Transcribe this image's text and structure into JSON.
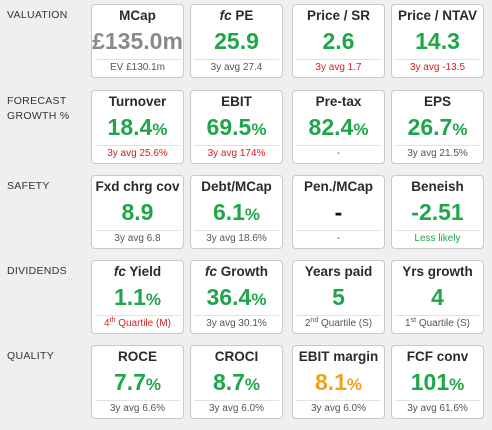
{
  "valuation": {
    "label": "VALUATION",
    "mcap": {
      "title": "MCap",
      "value": "£135.0m",
      "foot": "EV £130.1m"
    },
    "pe": {
      "title_italic": "fc",
      "title": " PE",
      "value": "25.9",
      "foot": "3y avg 27.4"
    },
    "psr": {
      "title": "Price / SR",
      "value": "2.6",
      "foot": "3y avg 1.7"
    },
    "ntav": {
      "title": "Price / NTAV",
      "value": "14.3",
      "foot": "3y avg -13.5"
    }
  },
  "forecast": {
    "label_line1": "FORECAST",
    "label_line2": "GROWTH %",
    "turnover": {
      "title": "Turnover",
      "value": "18.4",
      "unit": "%",
      "foot": "3y avg 25.6%"
    },
    "ebit": {
      "title": "EBIT",
      "value": "69.5",
      "unit": "%",
      "foot": "3y avg 174%"
    },
    "pretax": {
      "title": "Pre-tax",
      "value": "82.4",
      "unit": "%",
      "foot": "-"
    },
    "eps": {
      "title": "EPS",
      "value": "26.7",
      "unit": "%",
      "foot": "3y avg 21.5%"
    }
  },
  "safety": {
    "label": "SAFETY",
    "fxd": {
      "title": "Fxd chrg cov",
      "value": "8.9",
      "foot": "3y avg 6.8"
    },
    "debt": {
      "title": "Debt/MCap",
      "value": "6.1",
      "unit": "%",
      "foot": "3y avg 18.6%"
    },
    "pen": {
      "title": "Pen./MCap",
      "value": "-",
      "foot": "-"
    },
    "beneish": {
      "title": "Beneish",
      "value": "-2.51",
      "foot": "Less likely"
    }
  },
  "dividends": {
    "label": "DIVIDENDS",
    "yield": {
      "title_italic": "fc",
      "title": " Yield",
      "value": "1.1",
      "unit": "%",
      "foot_pre": "4",
      "foot_sup": "th",
      "foot_post": " Quartile (M)"
    },
    "growth": {
      "title_italic": "fc",
      "title": " Growth",
      "value": "36.4",
      "unit": "%",
      "foot": "3y avg 30.1%"
    },
    "years": {
      "title": "Years paid",
      "value": "5",
      "foot_pre": "2",
      "foot_sup": "nd",
      "foot_post": " Quartile (S)"
    },
    "yrs_growth": {
      "title": "Yrs growth",
      "value": "4",
      "foot_pre": "1",
      "foot_sup": "st",
      "foot_post": " Quartile (S)"
    }
  },
  "quality": {
    "label": "QUALITY",
    "roce": {
      "title": "ROCE",
      "value": "7.7",
      "unit": "%",
      "foot": "3y avg 6.6%"
    },
    "croci": {
      "title": "CROCI",
      "value": "8.7",
      "unit": "%",
      "foot": "3y avg 6.0%"
    },
    "ebit_margin": {
      "title": "EBIT margin",
      "value": "8.1",
      "unit": "%",
      "foot": "3y avg 6.0%"
    },
    "fcf": {
      "title": "FCF conv",
      "value": "101",
      "unit": "%",
      "foot": "3y avg 61.6%"
    }
  },
  "colors": {
    "positive": "#1fa64a",
    "negative": "#d61f1f",
    "warning": "#f0a21d",
    "neutral": "#8a8a8a"
  }
}
